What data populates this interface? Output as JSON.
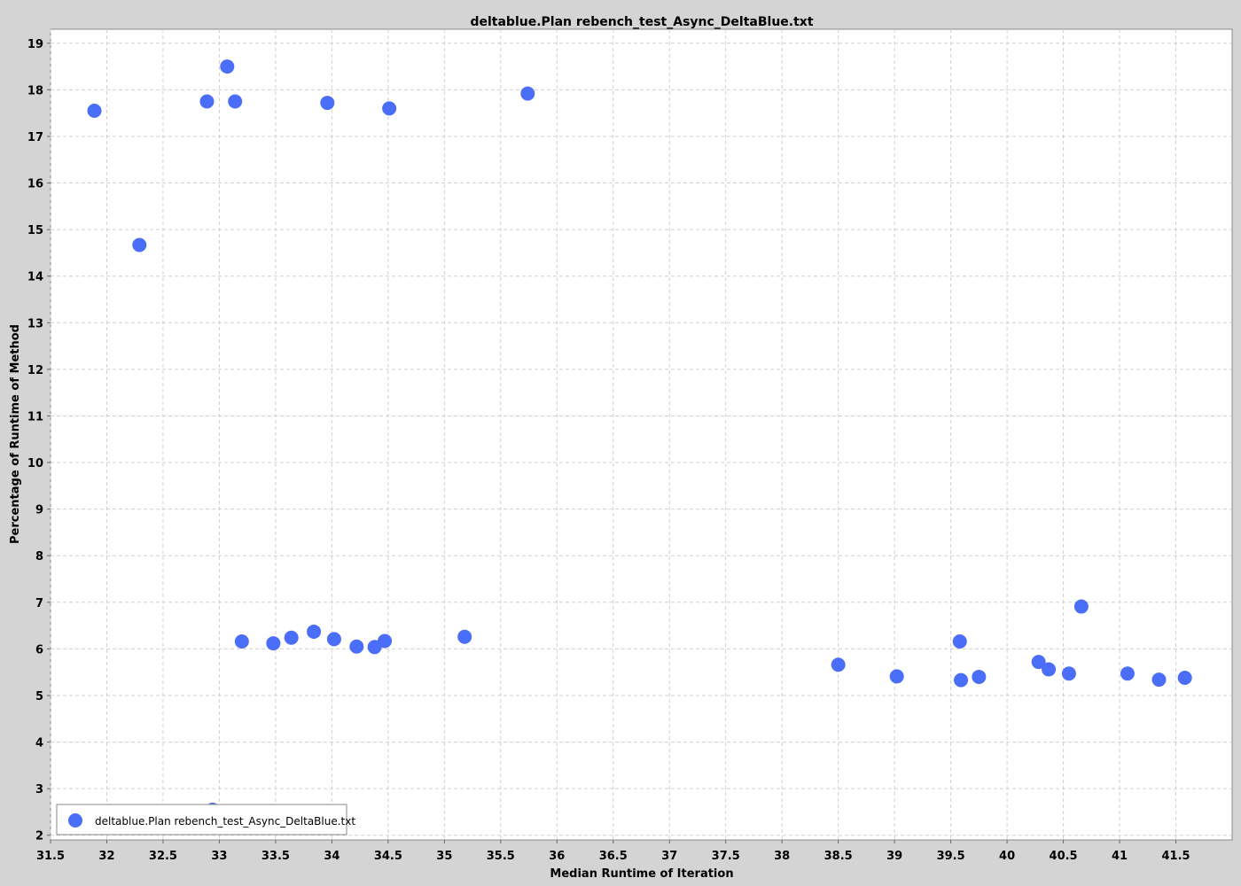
{
  "chart_data": {
    "type": "scatter",
    "title": "deltablue.Plan rebench_test_Async_DeltaBlue.txt",
    "xlabel": "Median Runtime of Iteration",
    "ylabel": "Percentage of Runtime of Method",
    "xlim": [
      31.5,
      42.0
    ],
    "ylim": [
      1.9,
      19.3
    ],
    "x_ticks": [
      31.5,
      32,
      32.5,
      33,
      33.5,
      34,
      34.5,
      35,
      35.5,
      36,
      36.5,
      37,
      37.5,
      38,
      38.5,
      39,
      39.5,
      40,
      40.5,
      41,
      41.5
    ],
    "y_ticks": [
      2,
      3,
      4,
      5,
      6,
      7,
      8,
      9,
      10,
      11,
      12,
      13,
      14,
      15,
      16,
      17,
      18,
      19
    ],
    "grid": true,
    "legend_position": "bottom-left",
    "series": [
      {
        "name": "deltablue.Plan rebench_test_Async_DeltaBlue.txt",
        "color": "#4a6ef7",
        "points": [
          [
            31.89,
            17.55
          ],
          [
            32.29,
            14.67
          ],
          [
            32.89,
            17.75
          ],
          [
            33.07,
            18.5
          ],
          [
            33.14,
            17.75
          ],
          [
            33.96,
            17.72
          ],
          [
            34.51,
            17.6
          ],
          [
            35.74,
            17.92
          ],
          [
            32.94,
            2.55
          ],
          [
            33.2,
            6.16
          ],
          [
            33.48,
            6.12
          ],
          [
            33.64,
            6.24
          ],
          [
            33.84,
            6.37
          ],
          [
            34.02,
            6.21
          ],
          [
            34.22,
            6.05
          ],
          [
            34.38,
            6.04
          ],
          [
            34.47,
            6.17
          ],
          [
            35.18,
            6.26
          ],
          [
            38.5,
            5.66
          ],
          [
            39.02,
            5.41
          ],
          [
            39.58,
            6.16
          ],
          [
            39.59,
            5.33
          ],
          [
            39.75,
            5.4
          ],
          [
            40.28,
            5.72
          ],
          [
            40.37,
            5.56
          ],
          [
            40.55,
            5.47
          ],
          [
            40.66,
            6.91
          ],
          [
            41.07,
            5.47
          ],
          [
            41.35,
            5.34
          ],
          [
            41.58,
            5.38
          ]
        ]
      }
    ]
  }
}
